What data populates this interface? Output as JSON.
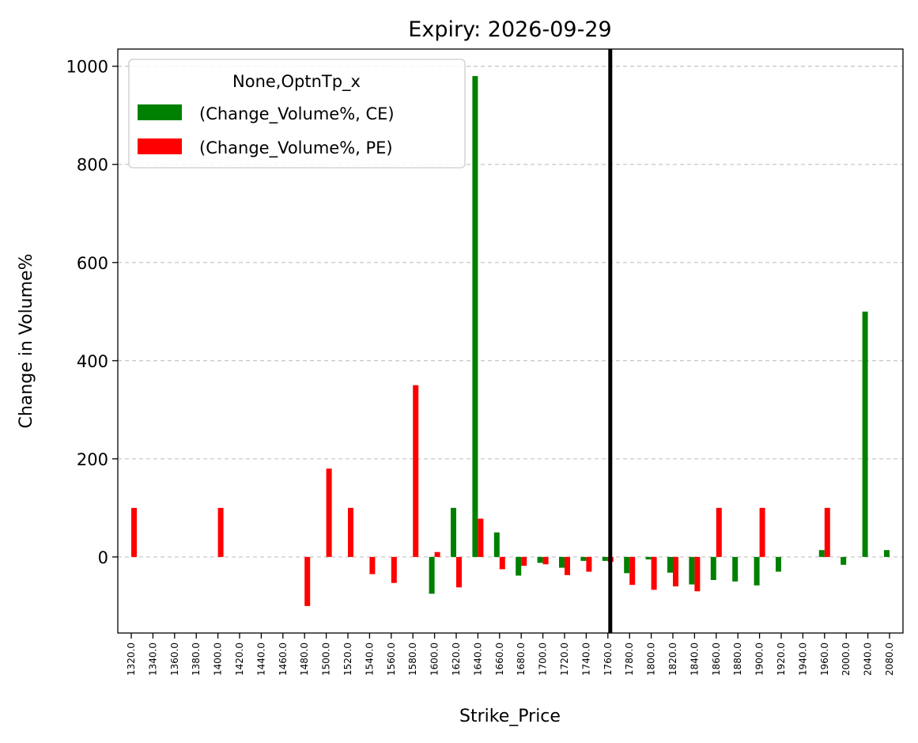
{
  "chart_data": {
    "type": "bar",
    "title": "Expiry: 2026-09-29",
    "xlabel": "Strike_Price",
    "ylabel": "Change in Volume%",
    "ylim": [
      -155,
      1035
    ],
    "yticks": [
      0,
      200,
      400,
      600,
      800,
      1000
    ],
    "grid": "y-dashed",
    "legend": {
      "title": "None,OptnTp_x",
      "placement": "top-left"
    },
    "categories": [
      "1320.0",
      "1340.0",
      "1360.0",
      "1380.0",
      "1400.0",
      "1420.0",
      "1440.0",
      "1460.0",
      "1480.0",
      "1500.0",
      "1520.0",
      "1540.0",
      "1560.0",
      "1580.0",
      "1600.0",
      "1620.0",
      "1640.0",
      "1660.0",
      "1680.0",
      "1700.0",
      "1720.0",
      "1740.0",
      "1760.0",
      "1780.0",
      "1800.0",
      "1820.0",
      "1840.0",
      "1860.0",
      "1880.0",
      "1900.0",
      "1920.0",
      "1940.0",
      "1960.0",
      "2000.0",
      "2040.0",
      "2080.0"
    ],
    "series": [
      {
        "name": "(Change_Volume%, CE)",
        "color": "#008000",
        "values": [
          null,
          null,
          null,
          null,
          null,
          null,
          null,
          null,
          null,
          null,
          null,
          null,
          null,
          null,
          -75,
          100,
          980,
          50,
          -38,
          -12,
          -22,
          -8,
          -8,
          -33,
          -5,
          -32,
          -56,
          -47,
          -50,
          -58,
          -30,
          null,
          14,
          -16,
          500,
          14
        ]
      },
      {
        "name": "(Change_Volume%, PE)",
        "color": "#ff0000",
        "values": [
          100,
          null,
          null,
          null,
          100,
          null,
          null,
          null,
          -100,
          180,
          100,
          -35,
          -53,
          350,
          10,
          -62,
          78,
          -25,
          -18,
          -15,
          -37,
          -30,
          -10,
          -57,
          -67,
          -60,
          -70,
          100,
          null,
          100,
          null,
          null,
          100,
          null,
          null,
          null
        ]
      }
    ],
    "reference_line": {
      "category": "1760.0",
      "color": "#000000"
    }
  }
}
